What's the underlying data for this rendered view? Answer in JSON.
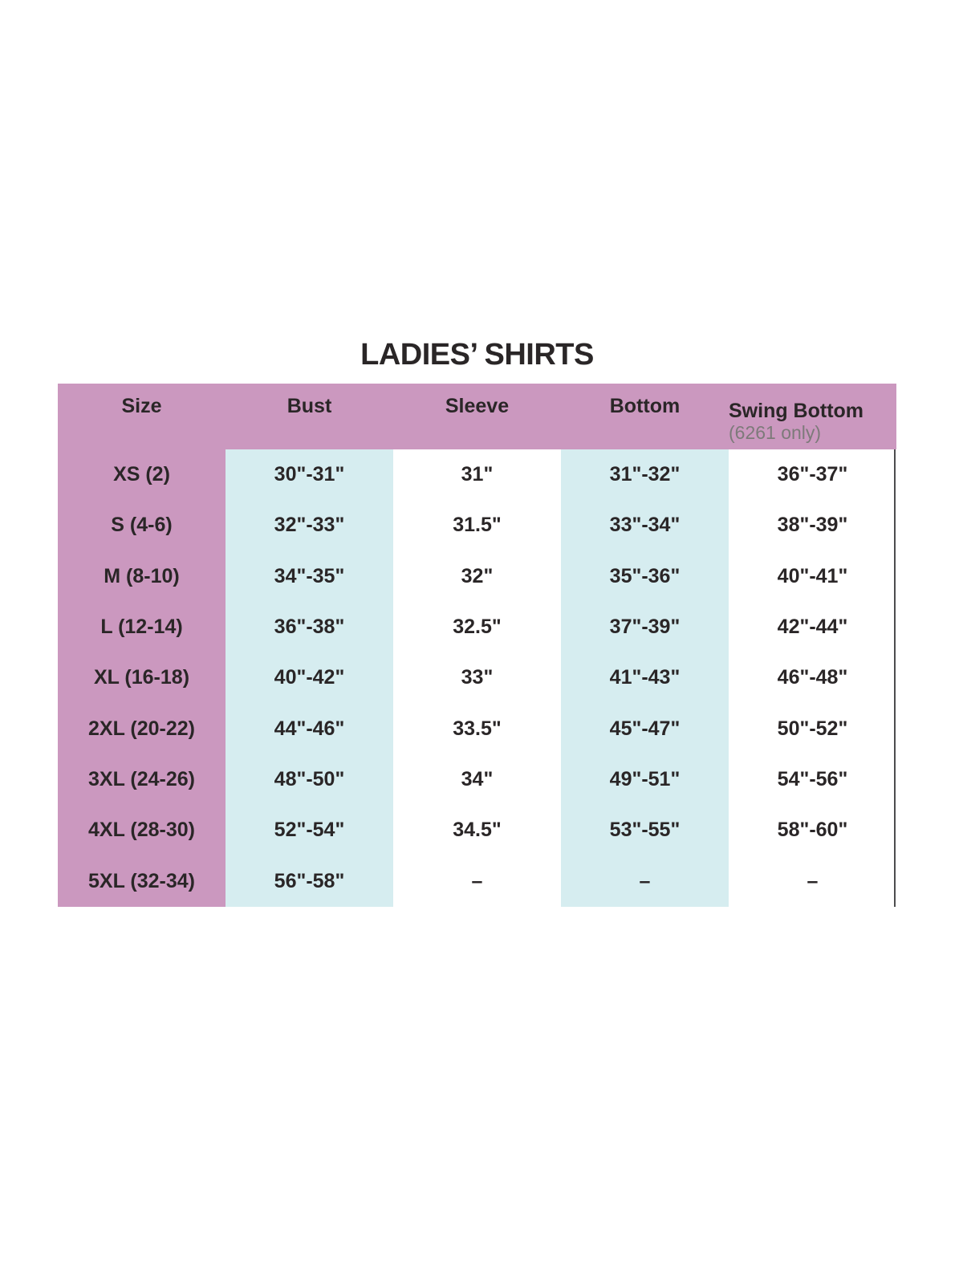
{
  "title": "LADIES’ SHIRTS",
  "chart_data": {
    "type": "table",
    "title": "LADIES’ SHIRTS",
    "columns": [
      "Size",
      "Bust",
      "Sleeve",
      "Bottom",
      "Swing Bottom"
    ],
    "swing_bottom_note": "(6261 only)",
    "rows": [
      [
        "XS (2)",
        "30\"-31\"",
        "31\"",
        "31\"-32\"",
        "36\"-37\""
      ],
      [
        "S (4-6)",
        "32\"-33\"",
        "31.5\"",
        "33\"-34\"",
        "38\"-39\""
      ],
      [
        "M (8-10)",
        "34\"-35\"",
        "32\"",
        "35\"-36\"",
        "40\"-41\""
      ],
      [
        "L (12-14)",
        "36\"-38\"",
        "32.5\"",
        "37\"-39\"",
        "42\"-44\""
      ],
      [
        "XL (16-18)",
        "40\"-42\"",
        "33\"",
        "41\"-43\"",
        "46\"-48\""
      ],
      [
        "2XL (20-22)",
        "44\"-46\"",
        "33.5\"",
        "45\"-47\"",
        "50\"-52\""
      ],
      [
        "3XL (24-26)",
        "48\"-50\"",
        "34\"",
        "49\"-51\"",
        "54\"-56\""
      ],
      [
        "4XL (28-30)",
        "52\"-54\"",
        "34.5\"",
        "53\"-55\"",
        "58\"-60\""
      ],
      [
        "5XL (32-34)",
        "56\"-58\"",
        "–",
        "–",
        "–"
      ]
    ]
  },
  "colors": {
    "background": "#ffffff",
    "header_pink": "#cb98bf",
    "highlight_blue": "#d6edf0",
    "text_dark": "#2a2627",
    "note_gray": "#7d7a7a",
    "border_gray": "#4c4c4e"
  }
}
